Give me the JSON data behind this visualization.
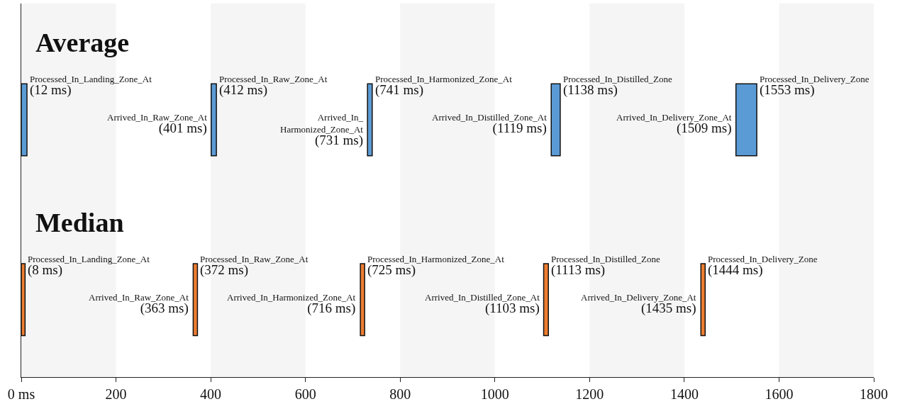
{
  "chart_data": {
    "type": "bar",
    "orientation": "horizontal",
    "categories": [
      "Average",
      "Median"
    ],
    "series": [
      {
        "colors": [
          "#5b9bd5",
          "#ed7d31"
        ],
        "base": [
          0,
          0
        ],
        "values": [
          12,
          8
        ]
      },
      {
        "colors": [
          "#5b9bd5",
          "#ed7d31"
        ],
        "base": [
          401,
          363
        ],
        "values": [
          11,
          9
        ]
      },
      {
        "colors": [
          "#5b9bd5",
          "#ed7d31"
        ],
        "base": [
          731,
          716
        ],
        "values": [
          10,
          9
        ]
      },
      {
        "colors": [
          "#5b9bd5",
          "#ed7d31"
        ],
        "base": [
          1119,
          1103
        ],
        "values": [
          19,
          10
        ]
      },
      {
        "colors": [
          "#5b9bd5",
          "#ed7d31"
        ],
        "base": [
          1509,
          1435
        ],
        "values": [
          44,
          9
        ]
      }
    ],
    "xlim": [
      0,
      1800
    ],
    "xticks": [
      {
        "value": 0,
        "label": "0 ms"
      },
      200,
      400,
      600,
      800,
      1000,
      1200,
      1400,
      1600,
      1800
    ],
    "tick_labels": "x",
    "grid": false,
    "bands": [
      {
        "axis": "x",
        "from": 0,
        "to": 200,
        "color": "#f5f5f5"
      },
      {
        "axis": "x",
        "from": 400,
        "to": 600,
        "color": "#f5f5f5"
      },
      {
        "axis": "x",
        "from": 800,
        "to": 1000,
        "color": "#f5f5f5"
      },
      {
        "axis": "x",
        "from": 1200,
        "to": 1400,
        "color": "#f5f5f5"
      },
      {
        "axis": "x",
        "from": 1600,
        "to": 1800,
        "color": "#f5f5f5"
      }
    ],
    "annotations": [
      {
        "text": "Processed_In_Landing_Zone_At\n(12 ms)",
        "x": 12,
        "y": "Average"
      },
      {
        "text": "Processed_In_Raw_Zone_At\n(412 ms)",
        "x": 412,
        "y": "Average"
      },
      {
        "text": "Arrived_In_Raw_Zone_At\n(401 ms)",
        "x": 401,
        "y": "Average"
      },
      {
        "text": "Processed_In_Harmonized_Zone_At\n(741 ms)",
        "x": 741,
        "y": "Average"
      },
      {
        "text": "Arrived_In_\nHarmonized_Zone_At\n(731 ms)",
        "x": 731,
        "y": "Average"
      },
      {
        "text": "Processed_In_Distilled_Zone\n(1138 ms)",
        "x": 1138,
        "y": "Average"
      },
      {
        "text": "Arrived_In_Distilled_Zone_At\n(1119 ms)",
        "x": 1119,
        "y": "Average"
      },
      {
        "text": "Processed_In_Delivery_Zone\n(1553 ms)",
        "x": 1553,
        "y": "Average"
      },
      {
        "text": "Arrived_In_Delivery_Zone_At\n(1509 ms)",
        "x": 1509,
        "y": "Average"
      },
      {
        "text": "Processed_In_Landing_Zone_At\n(8 ms)",
        "x": 8,
        "y": "Median"
      },
      {
        "text": "Processed_In_Raw_Zone_At\n(372 ms)",
        "x": 372,
        "y": "Median"
      },
      {
        "text": "Arrived_In_Raw_Zone_At\n(363 ms)",
        "x": 363,
        "y": "Median"
      },
      {
        "text": "Processed_In_Harmonized_Zone_At\n(725 ms)",
        "x": 725,
        "y": "Median"
      },
      {
        "text": "Arrived_In_Harmonized_Zone_At\n(716 ms)",
        "x": 716,
        "y": "Median"
      },
      {
        "text": "Processed_In_Distilled_Zone\n(1113 ms)",
        "x": 1113,
        "y": "Median"
      },
      {
        "text": "Arrived_In_Distilled_Zone_At\n(1103 ms)",
        "x": 1103,
        "y": "Median"
      },
      {
        "text": "Processed_In_Delivery_Zone\n(1444 ms)",
        "x": 1444,
        "y": "Median"
      },
      {
        "text": "Arrived_In_Delivery_Zone_At\n(1435 ms)",
        "x": 1435,
        "y": "Median"
      }
    ]
  }
}
